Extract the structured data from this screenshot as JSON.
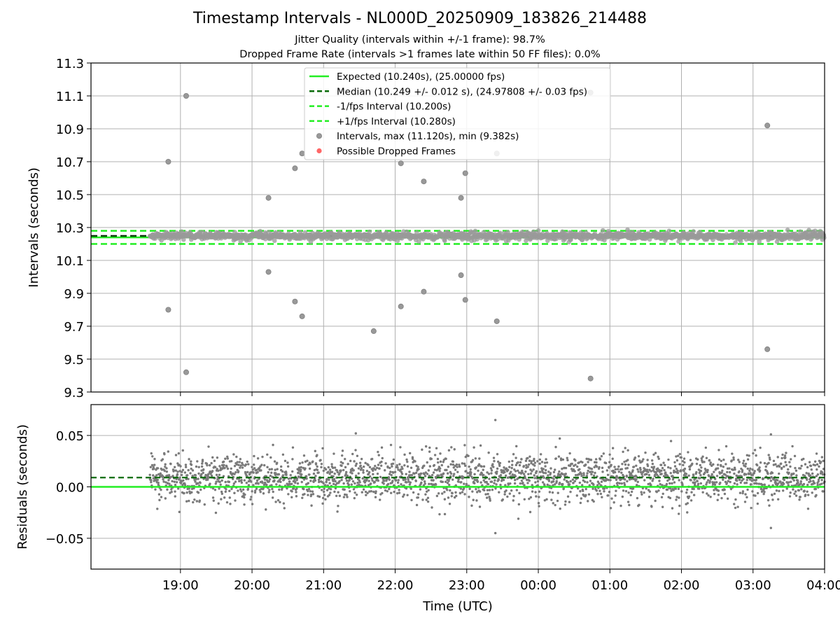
{
  "title": "Timestamp Intervals - NL000D_20250909_183826_214488",
  "subtitle_1": "Jitter Quality (intervals within +/-1 frame): 98.7%",
  "subtitle_2": "Dropped Frame Rate (intervals >1 frames late within 50 FF files): 0.0%",
  "colors": {
    "expected": "#22ee22",
    "median": "#0a6b0a",
    "fps_band": "#22ee22",
    "intervals": "#999999",
    "dropped": "#ff6666",
    "residuals": "#7a7a7a",
    "grid": "#b0b0b0"
  },
  "chart_data": [
    {
      "type": "scatter",
      "ylabel": "Intervals (seconds)",
      "xlabel": "",
      "xlim": [
        -1.25,
        9.0
      ],
      "ylim": [
        9.3,
        11.3
      ],
      "yticks": [
        "9.3",
        "9.5",
        "9.7",
        "9.9",
        "10.1",
        "10.3",
        "10.5",
        "10.7",
        "10.9",
        "11.1",
        "11.3"
      ],
      "grid": true,
      "legend_position": "top-center",
      "legend": [
        {
          "label": "Expected (10.240s), (25.00000 fps)",
          "style": "solid",
          "color": "#22ee22"
        },
        {
          "label": "Median (10.249 +/- 0.012 s), (24.97808 +/- 0.03 fps)",
          "style": "dashed",
          "color": "#0a6b0a"
        },
        {
          "label": "-1/fps Interval (10.200s)",
          "style": "dashed",
          "color": "#22ee22"
        },
        {
          "label": "+1/fps Interval (10.280s)",
          "style": "dashed",
          "color": "#22ee22"
        },
        {
          "label": "Intervals, max (11.120s), min (9.382s)",
          "style": "marker",
          "color": "#999999"
        },
        {
          "label": "Possible Dropped Frames",
          "style": "marker",
          "color": "#ff6666"
        }
      ],
      "reference_lines": {
        "expected": 10.24,
        "median": 10.249,
        "minus_1_fps": 10.2,
        "plus_1_fps": 10.28
      },
      "data_span": [
        -0.43,
        9.0
      ],
      "outliers_x_hours_after_1900": [
        -0.17,
        -0.17,
        0.08,
        0.08,
        1.23,
        1.23,
        1.6,
        1.6,
        1.7,
        1.7,
        2.7,
        3.08,
        3.08,
        3.4,
        3.4,
        3.92,
        3.92,
        3.98,
        3.98,
        4.42,
        4.42,
        5.73,
        5.73,
        8.2,
        8.2
      ],
      "outliers_y": [
        10.7,
        9.8,
        11.1,
        9.42,
        10.48,
        10.03,
        10.66,
        9.85,
        10.75,
        9.76,
        9.67,
        10.69,
        9.82,
        10.58,
        9.91,
        10.48,
        10.01,
        10.63,
        9.86,
        10.75,
        9.73,
        11.12,
        9.382,
        10.92,
        9.56
      ],
      "dropped_frames": []
    },
    {
      "type": "scatter",
      "ylabel": "Residuals (seconds)",
      "xlabel": "Time (UTC)",
      "xlim": [
        -1.25,
        9.0
      ],
      "ylim": [
        -0.08,
        0.08
      ],
      "xticks": [
        "19:00",
        "20:00",
        "21:00",
        "22:00",
        "23:00",
        "00:00",
        "01:00",
        "02:00",
        "03:00",
        "04:00"
      ],
      "yticks": [
        "−0.05",
        "0.00",
        "0.05"
      ],
      "grid": true,
      "reference_lines": {
        "expected": 0.0,
        "median": 0.009
      },
      "residual_mean": 0.009,
      "residual_std": 0.012,
      "residual_point_count": 2500,
      "notable_residuals_x_hours_after_1900": [
        2.45,
        4.4,
        4.4,
        5.3,
        8.25,
        8.25
      ],
      "notable_residuals_y": [
        0.052,
        0.065,
        -0.045,
        0.047,
        0.051,
        -0.04
      ]
    }
  ]
}
